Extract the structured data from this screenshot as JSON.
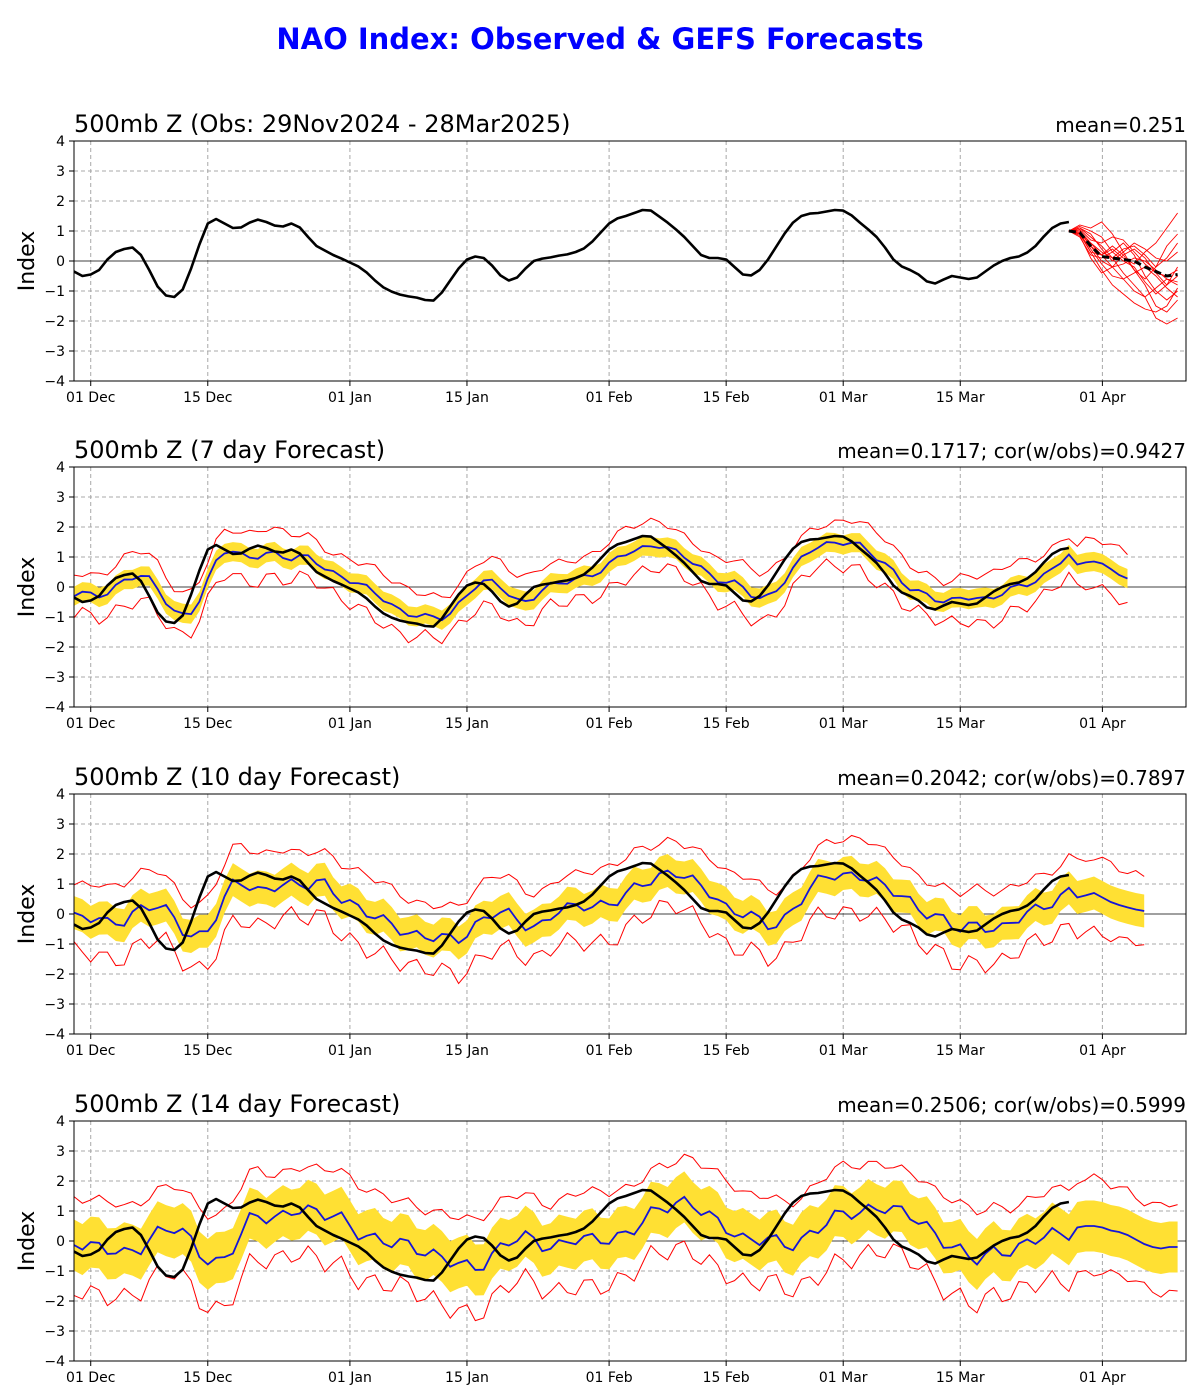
{
  "title": "NAO Index: Observed & GEFS Forecasts",
  "colors": {
    "title": "#0000ff",
    "observed": "#000000",
    "ensemble_mean": "#1515d8",
    "spread_band": "#ffe033",
    "spread_edges": "#ff0000",
    "members": "#ff0000",
    "grid": "#a8a8a8"
  },
  "chart_data": [
    {
      "type": "line",
      "title": "500mb Z (Obs: 29Nov2024 - 28Mar2025)",
      "stats": "mean=0.251",
      "ylabel": "Index",
      "ylim": [
        -4,
        4
      ],
      "yticks": [
        -4,
        -3,
        -2,
        -1,
        0,
        1,
        2,
        3,
        4
      ],
      "xticks": [
        {
          "day": 0,
          "label": "01 Dec"
        },
        {
          "day": 14,
          "label": "15 Dec"
        },
        {
          "day": 31,
          "label": "01 Jan"
        },
        {
          "day": 45,
          "label": "15 Jan"
        },
        {
          "day": 62,
          "label": "01 Feb"
        },
        {
          "day": 76,
          "label": "15 Feb"
        },
        {
          "day": 90,
          "label": "01 Mar"
        },
        {
          "day": 104,
          "label": "15 Mar"
        },
        {
          "day": 121,
          "label": "01 Apr"
        }
      ],
      "xlim": [
        -2,
        131
      ],
      "grid": true,
      "series": [
        {
          "role": "observed",
          "x": [
            -2,
            -1,
            0,
            1,
            2,
            3,
            4,
            5,
            6,
            7,
            8,
            9,
            10,
            11,
            12,
            13,
            14,
            15,
            16,
            17,
            18,
            19,
            20,
            21,
            22,
            23,
            24,
            25,
            26,
            27,
            28,
            29,
            30,
            31,
            32,
            33,
            34,
            35,
            36,
            37,
            38,
            39,
            40,
            41,
            42,
            43,
            44,
            45,
            46,
            47,
            48,
            49,
            50,
            51,
            52,
            53,
            54,
            55,
            56,
            57,
            58,
            59,
            60,
            61,
            62,
            63,
            64,
            65,
            66,
            67,
            68,
            69,
            70,
            71,
            72,
            73,
            74,
            75,
            76,
            77,
            78,
            79,
            80,
            81,
            82,
            83,
            84,
            85,
            86,
            87,
            88,
            89,
            90,
            91,
            92,
            93,
            94,
            95,
            96,
            97,
            98,
            99,
            100,
            101,
            102,
            103,
            104,
            105,
            106,
            107,
            108,
            109,
            110,
            111,
            112,
            113,
            114,
            115,
            116,
            117
          ],
          "y": [
            -0.35,
            -0.5,
            -0.45,
            -0.3,
            0.05,
            0.3,
            0.4,
            0.45,
            0.2,
            -0.3,
            -0.85,
            -1.15,
            -1.2,
            -0.95,
            -0.25,
            0.55,
            1.25,
            1.4,
            1.25,
            1.1,
            1.12,
            1.28,
            1.38,
            1.3,
            1.18,
            1.15,
            1.25,
            1.12,
            0.8,
            0.5,
            0.35,
            0.2,
            0.08,
            -0.05,
            -0.18,
            -0.38,
            -0.65,
            -0.88,
            -1.02,
            -1.12,
            -1.18,
            -1.22,
            -1.3,
            -1.32,
            -1.05,
            -0.65,
            -0.25,
            0.05,
            0.15,
            0.1,
            -0.15,
            -0.48,
            -0.65,
            -0.55,
            -0.25,
            0.0,
            0.08,
            0.12,
            0.18,
            0.22,
            0.3,
            0.42,
            0.65,
            0.95,
            1.25,
            1.42,
            1.5,
            1.6,
            1.7,
            1.68,
            1.48,
            1.28,
            1.05,
            0.8,
            0.5,
            0.2,
            0.1,
            0.1,
            0.05,
            -0.2,
            -0.45,
            -0.48,
            -0.3,
            0.05,
            0.48,
            0.92,
            1.28,
            1.5,
            1.58,
            1.6,
            1.65,
            1.7,
            1.68,
            1.52,
            1.28,
            1.05,
            0.8,
            0.45,
            0.05,
            -0.18,
            -0.3,
            -0.45,
            -0.68,
            -0.75,
            -0.62,
            -0.5,
            -0.55,
            -0.6,
            -0.55,
            -0.35,
            -0.15,
            0.0,
            0.1,
            0.15,
            0.28,
            0.5,
            0.82,
            1.1,
            1.25,
            1.3
          ]
        }
      ],
      "members_note": "",
      "forecast_members": [
        [
          1.0,
          1.0,
          0.6,
          0.2,
          0.4,
          0.1,
          -0.1,
          0.3,
          0.6,
          1.1,
          1.6
        ],
        [
          1.0,
          0.9,
          0.3,
          -0.3,
          -0.8,
          -1.1,
          -1.4,
          -1.6,
          -1.7,
          -1.5,
          -0.9
        ],
        [
          1.0,
          1.1,
          0.8,
          0.5,
          0.1,
          -0.4,
          -0.8,
          -1.2,
          -1.9,
          -2.1,
          -1.9
        ],
        [
          1.0,
          1.2,
          1.1,
          1.3,
          0.9,
          0.3,
          -0.3,
          -0.6,
          -0.2,
          0.5,
          0.9
        ],
        [
          1.0,
          0.8,
          0.2,
          0.1,
          0.3,
          0.6,
          0.2,
          -0.5,
          -1.0,
          -1.3,
          -1.0
        ],
        [
          1.0,
          0.95,
          0.5,
          0.0,
          -0.2,
          -0.1,
          0.1,
          0.0,
          -0.3,
          -0.6,
          -0.8
        ],
        [
          1.0,
          1.05,
          0.7,
          0.6,
          0.8,
          0.7,
          0.3,
          -0.1,
          -0.4,
          -0.5,
          -0.3
        ],
        [
          1.0,
          0.9,
          0.4,
          -0.1,
          -0.5,
          -0.6,
          -0.4,
          -0.2,
          -0.5,
          -0.9,
          -1.2
        ],
        [
          1.0,
          1.1,
          0.9,
          0.4,
          0.0,
          0.3,
          0.6,
          0.4,
          0.1,
          0.0,
          0.3
        ],
        [
          1.0,
          0.85,
          0.1,
          -0.4,
          -0.2,
          0.2,
          0.4,
          0.1,
          -0.4,
          -0.8,
          -0.5
        ],
        [
          1.0,
          1.0,
          0.5,
          0.2,
          -0.2,
          -0.6,
          -1.0,
          -1.2,
          -0.9,
          -0.6,
          -0.7
        ],
        [
          1.0,
          1.15,
          1.0,
          0.8,
          0.3,
          0.0,
          -0.2,
          -0.7,
          -1.1,
          -0.8,
          -0.2
        ],
        [
          1.0,
          0.9,
          0.3,
          0.2,
          0.5,
          0.2,
          -0.3,
          -0.8,
          -1.5,
          -1.7,
          -1.3
        ],
        [
          1.0,
          1.0,
          0.6,
          0.3,
          0.1,
          0.4,
          0.5,
          0.2,
          -0.2,
          0.1,
          0.6
        ]
      ],
      "forecast_mean": [
        1.0,
        0.95,
        0.5,
        0.15,
        0.1,
        0.05,
        0.0,
        -0.2,
        -0.35,
        -0.5,
        -0.45
      ]
    },
    {
      "type": "line",
      "title": "500mb Z (7 day Forecast)",
      "stats": "mean=0.1717; cor(w/obs)=0.9427",
      "ylabel": "Index",
      "ylim": [
        -4,
        4
      ],
      "lead": 7,
      "shift_days": 1.5,
      "spread": 0.32,
      "edge": 0.75,
      "noise": 0.15,
      "tail": [
        0.75,
        0.82,
        0.85,
        0.78,
        0.6,
        0.4,
        0.28
      ]
    },
    {
      "type": "line",
      "title": "500mb Z (10 day Forecast)",
      "stats": "mean=0.2042; cor(w/obs)=0.7897",
      "ylabel": "Index",
      "ylim": [
        -4,
        4
      ],
      "lead": 10,
      "shift_days": 3,
      "spread": 0.55,
      "edge": 1.15,
      "noise": 0.28,
      "tail": [
        0.55,
        0.62,
        0.7,
        0.55,
        0.4,
        0.3,
        0.22,
        0.15,
        0.1
      ]
    },
    {
      "type": "line",
      "title": "500mb Z (14 day Forecast)",
      "stats": "mean=0.2506; cor(w/obs)=0.5999",
      "ylabel": "Index",
      "ylim": [
        -4,
        4
      ],
      "lead": 14,
      "shift_days": 5,
      "spread": 0.85,
      "edge": 1.5,
      "noise": 0.35,
      "tail": [
        0.45,
        0.5,
        0.5,
        0.45,
        0.35,
        0.3,
        0.2,
        0.05,
        -0.1,
        -0.2,
        -0.25,
        -0.2,
        -0.2
      ]
    }
  ]
}
